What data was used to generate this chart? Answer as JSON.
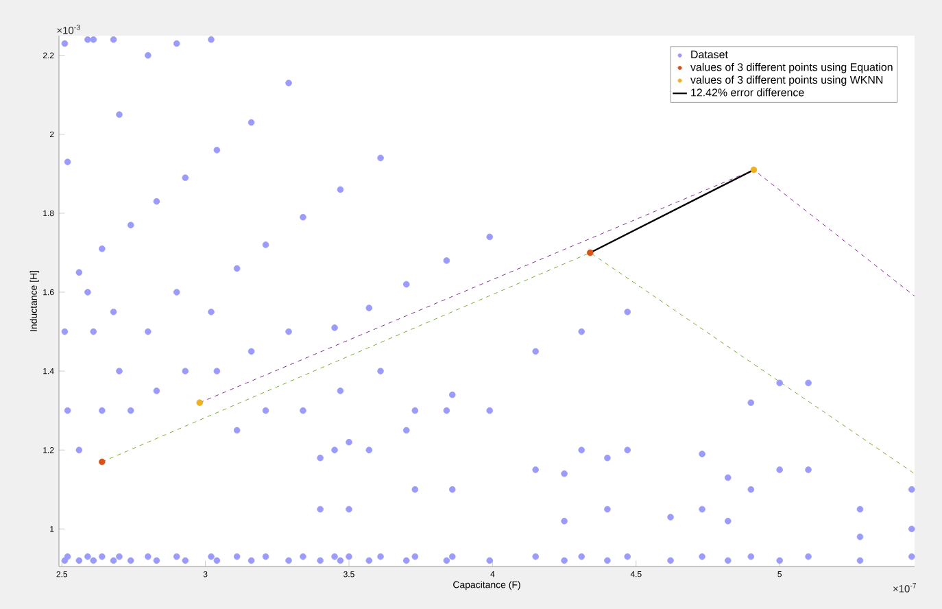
{
  "chart_data": {
    "type": "scatter",
    "xlabel": "Capacitance (F)",
    "ylabel": "Inductance [H]",
    "xlim": [
      2.49,
      5.47
    ],
    "ylim": [
      0.905,
      2.25
    ],
    "xticks": [
      2.5,
      3,
      3.5,
      4,
      4.5,
      5
    ],
    "yticks": [
      1,
      1.2,
      1.4,
      1.6,
      1.8,
      2,
      2.2
    ],
    "grid": false,
    "legend": "top right",
    "annotations": [
      "×10$^{-3}$",
      "×10$^{-7}$"
    ],
    "series": [
      {
        "name": "Dataset",
        "color": "#9b9bfb",
        "marker": "circle",
        "x": [
          2.51,
          2.51,
          2.51,
          2.52,
          2.52,
          2.52,
          2.56,
          2.56,
          2.56,
          2.59,
          2.59,
          2.59,
          2.61,
          2.61,
          2.61,
          2.64,
          2.64,
          2.64,
          2.68,
          2.68,
          2.68,
          2.7,
          2.7,
          2.7,
          2.74,
          2.74,
          2.74,
          2.8,
          2.8,
          2.8,
          2.83,
          2.83,
          2.83,
          2.9,
          2.9,
          2.9,
          2.93,
          2.93,
          2.93,
          3.02,
          3.02,
          3.02,
          3.04,
          3.04,
          3.04,
          3.11,
          3.11,
          3.11,
          3.16,
          3.16,
          3.16,
          3.21,
          3.21,
          3.21,
          3.29,
          3.29,
          3.29,
          3.34,
          3.34,
          3.34,
          3.4,
          3.4,
          3.4,
          3.45,
          3.45,
          3.45,
          3.47,
          3.47,
          3.47,
          3.5,
          3.5,
          3.5,
          3.57,
          3.57,
          3.57,
          3.61,
          3.61,
          3.61,
          3.7,
          3.7,
          3.7,
          3.73,
          3.73,
          3.73,
          3.84,
          3.84,
          3.84,
          3.86,
          3.86,
          3.86,
          3.99,
          3.99,
          3.99,
          4.15,
          4.15,
          4.15,
          4.25,
          4.25,
          4.25,
          4.31,
          4.31,
          4.31,
          4.4,
          4.4,
          4.4,
          4.47,
          4.47,
          4.47,
          4.62,
          4.62,
          4.73,
          4.73,
          4.73,
          4.82,
          4.82,
          4.82,
          4.9,
          4.9,
          4.9,
          5.0,
          5.0,
          5.0,
          5.1,
          5.1,
          5.1,
          5.28,
          5.28,
          5.28,
          5.46,
          5.46,
          5.46
        ],
        "values": [
          2.23,
          1.5,
          0.92,
          1.93,
          1.3,
          0.93,
          1.65,
          1.2,
          0.92,
          2.24,
          1.6,
          0.93,
          2.24,
          1.5,
          0.92,
          1.71,
          1.3,
          0.93,
          2.24,
          1.55,
          0.92,
          2.05,
          1.4,
          0.93,
          1.77,
          1.3,
          0.92,
          2.2,
          1.5,
          0.93,
          1.83,
          1.35,
          0.92,
          2.23,
          1.6,
          0.93,
          1.89,
          1.4,
          0.92,
          2.24,
          1.55,
          0.93,
          1.96,
          1.4,
          0.92,
          1.66,
          1.25,
          0.93,
          2.03,
          1.45,
          0.92,
          1.72,
          1.3,
          0.93,
          2.13,
          1.5,
          0.92,
          1.79,
          1.3,
          0.93,
          1.18,
          1.05,
          0.92,
          1.51,
          1.2,
          0.93,
          1.86,
          1.35,
          0.92,
          1.22,
          1.05,
          0.93,
          1.56,
          1.2,
          0.92,
          1.94,
          1.4,
          0.93,
          1.62,
          1.25,
          0.92,
          1.3,
          1.1,
          0.93,
          1.68,
          1.3,
          0.92,
          1.34,
          1.1,
          0.93,
          1.74,
          1.3,
          0.92,
          1.45,
          1.15,
          0.93,
          1.14,
          1.02,
          0.92,
          1.5,
          1.2,
          0.93,
          1.18,
          1.05,
          0.92,
          1.55,
          1.2,
          0.93,
          1.03,
          0.92,
          1.19,
          1.05,
          0.93,
          1.13,
          1.02,
          0.92,
          1.32,
          1.1,
          0.93,
          1.37,
          1.15,
          0.92,
          1.37,
          1.15,
          0.93,
          1.05,
          0.98,
          0.92,
          1.1,
          1.0,
          0.93
        ]
      },
      {
        "name": "values of 3 different points using Equation",
        "color": "#d95319",
        "marker": "circle",
        "x": [
          2.64,
          4.34
        ],
        "values": [
          1.17,
          1.7
        ]
      },
      {
        "name": "values of 3 different points using WKNN",
        "color": "#edb120",
        "marker": "circle",
        "x": [
          2.98,
          4.91
        ],
        "values": [
          1.32,
          1.91
        ]
      },
      {
        "name": "12.42% error difference",
        "type": "line",
        "color": "#000000",
        "marker": "none",
        "line_style": "solid",
        "x": [
          4.34,
          4.91
        ],
        "values": [
          1.7,
          1.91
        ]
      },
      {
        "type": "line",
        "color": "#7e2f8e",
        "marker": "none",
        "line_style": "dashed",
        "x": [
          2.98,
          4.91,
          5.47
        ],
        "values": [
          1.32,
          1.91,
          1.59
        ]
      },
      {
        "type": "line",
        "color": "#77ac30",
        "marker": "none",
        "line_style": "dashed",
        "x": [
          2.64,
          4.34,
          5.47
        ],
        "values": [
          1.17,
          1.7,
          1.14
        ]
      }
    ]
  }
}
